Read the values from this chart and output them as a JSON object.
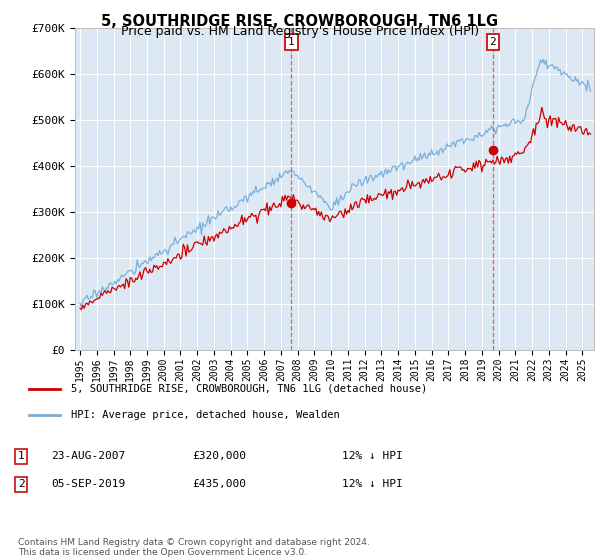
{
  "title": "5, SOUTHRIDGE RISE, CROWBOROUGH, TN6 1LG",
  "subtitle": "Price paid vs. HM Land Registry's House Price Index (HPI)",
  "ylim": [
    0,
    700000
  ],
  "yticks": [
    0,
    100000,
    200000,
    300000,
    400000,
    500000,
    600000,
    700000
  ],
  "ytick_labels": [
    "£0",
    "£100K",
    "£200K",
    "£300K",
    "£400K",
    "£500K",
    "£600K",
    "£700K"
  ],
  "bg_color": "#dce9f5",
  "grid_color": "#ffffff",
  "red_color": "#cc0000",
  "blue_color": "#7aafda",
  "marker1_x": 2007.625,
  "marker1_price": 320000,
  "marker2_x": 2019.667,
  "marker2_price": 435000,
  "legend_entry1": "5, SOUTHRIDGE RISE, CROWBOROUGH, TN6 1LG (detached house)",
  "legend_entry2": "HPI: Average price, detached house, Wealden",
  "table_row1": [
    "1",
    "23-AUG-2007",
    "£320,000",
    "12% ↓ HPI"
  ],
  "table_row2": [
    "2",
    "05-SEP-2019",
    "£435,000",
    "12% ↓ HPI"
  ],
  "footnote": "Contains HM Land Registry data © Crown copyright and database right 2024.\nThis data is licensed under the Open Government Licence v3.0.",
  "xmin": 1994.7,
  "xmax": 2025.7
}
